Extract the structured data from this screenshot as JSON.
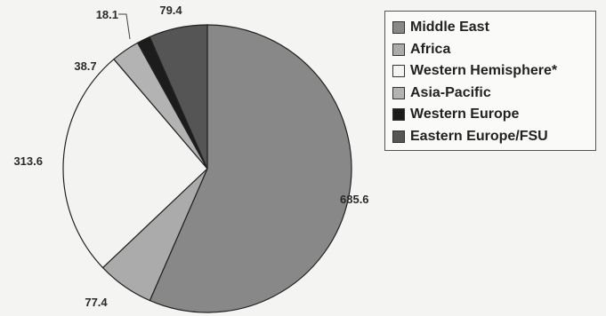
{
  "chart_data": {
    "type": "pie",
    "legend_position": "top-right",
    "slices": [
      {
        "label": "Middle East",
        "value": 685.6,
        "value_label": "685.6",
        "color": "#888888"
      },
      {
        "label": "Africa",
        "value": 77.4,
        "value_label": "77.4",
        "color": "#ababab"
      },
      {
        "label": "Western Hemisphere*",
        "value": 313.6,
        "value_label": "313.6",
        "color": "#f3f3f1"
      },
      {
        "label": "Asia-Pacific",
        "value": 38.7,
        "value_label": "38.7",
        "color": "#b3b3b3"
      },
      {
        "label": "Western Europe",
        "value": 18.1,
        "value_label": "18.1",
        "color": "#1c1c1c"
      },
      {
        "label": "Eastern Europe/FSU",
        "value": 79.4,
        "value_label": "79.4",
        "color": "#555555"
      }
    ]
  }
}
